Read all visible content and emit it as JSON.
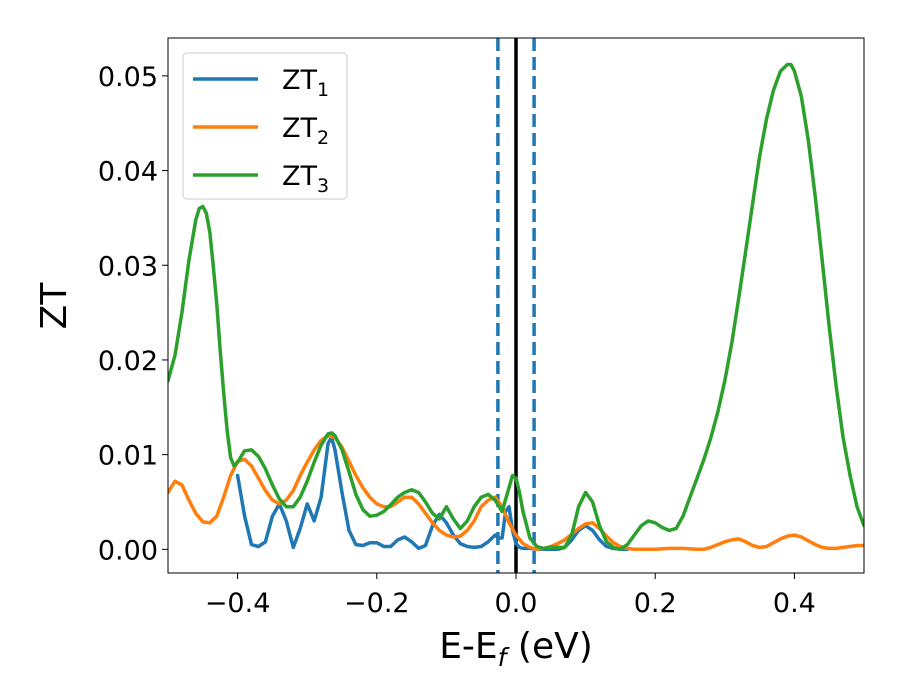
{
  "chart_data": {
    "type": "line",
    "xlabel": {
      "main": "E-E",
      "sub": "f",
      "suffix": " (eV)"
    },
    "ylabel": "ZT",
    "xlim": [
      -0.5,
      0.5
    ],
    "ylim": [
      -0.0025,
      0.054
    ],
    "xticks": [
      -0.4,
      -0.2,
      0.0,
      0.2,
      0.4
    ],
    "xtick_labels": [
      "−0.4",
      "−0.2",
      "0.0",
      "0.2",
      "0.4"
    ],
    "yticks": [
      0.0,
      0.01,
      0.02,
      0.03,
      0.04,
      0.05
    ],
    "ytick_labels": [
      "0.00",
      "0.01",
      "0.02",
      "0.03",
      "0.04",
      "0.05"
    ],
    "grid": false,
    "legend_position": "top-left",
    "vlines": [
      {
        "x": -0.026,
        "style": "dashed",
        "color": "#1f77b4"
      },
      {
        "x": 0.0,
        "style": "solid",
        "color": "#000000"
      },
      {
        "x": 0.026,
        "style": "dashed",
        "color": "#1f77b4"
      }
    ],
    "series": [
      {
        "name": "ZT",
        "sub": "1",
        "color": "#1f77b4",
        "x": [
          -0.4,
          -0.39,
          -0.38,
          -0.37,
          -0.36,
          -0.35,
          -0.34,
          -0.33,
          -0.32,
          -0.31,
          -0.3,
          -0.29,
          -0.28,
          -0.27,
          -0.265,
          -0.26,
          -0.25,
          -0.24,
          -0.23,
          -0.22,
          -0.21,
          -0.2,
          -0.19,
          -0.18,
          -0.17,
          -0.16,
          -0.15,
          -0.14,
          -0.13,
          -0.12,
          -0.11,
          -0.1,
          -0.09,
          -0.08,
          -0.07,
          -0.06,
          -0.05,
          -0.04,
          -0.03,
          -0.025,
          -0.02,
          -0.015,
          -0.01,
          -0.005,
          0.0,
          0.005,
          0.01,
          0.02,
          0.03,
          0.04,
          0.05,
          0.06,
          0.07,
          0.08,
          0.09,
          0.1,
          0.11,
          0.12,
          0.13,
          0.14,
          0.15,
          0.16
        ],
        "y": [
          0.0078,
          0.0035,
          0.0005,
          0.0003,
          0.0008,
          0.0035,
          0.0048,
          0.003,
          0.0002,
          0.0022,
          0.0048,
          0.003,
          0.0055,
          0.0112,
          0.0118,
          0.0105,
          0.006,
          0.002,
          0.0005,
          0.0004,
          0.0007,
          0.0007,
          0.0003,
          0.0003,
          0.001,
          0.0013,
          0.0008,
          0.0001,
          0.0004,
          0.0025,
          0.0037,
          0.0028,
          0.0015,
          0.0006,
          0.0003,
          0.0002,
          0.0003,
          0.0008,
          0.0015,
          0.0012,
          0.0012,
          0.004,
          0.0045,
          0.002,
          0.0006,
          0.0002,
          0.0001,
          0.0001,
          0.0,
          0.0,
          0.0,
          0.0,
          0.0002,
          0.001,
          0.002,
          0.0025,
          0.002,
          0.001,
          0.0003,
          0.0001,
          0.0,
          0.0
        ]
      },
      {
        "name": "ZT",
        "sub": "2",
        "color": "#ff7f0e",
        "x": [
          -0.5,
          -0.49,
          -0.48,
          -0.47,
          -0.46,
          -0.45,
          -0.44,
          -0.43,
          -0.42,
          -0.41,
          -0.4,
          -0.39,
          -0.38,
          -0.37,
          -0.36,
          -0.35,
          -0.34,
          -0.33,
          -0.32,
          -0.31,
          -0.3,
          -0.29,
          -0.28,
          -0.27,
          -0.26,
          -0.25,
          -0.24,
          -0.23,
          -0.22,
          -0.21,
          -0.2,
          -0.19,
          -0.18,
          -0.17,
          -0.16,
          -0.15,
          -0.14,
          -0.13,
          -0.12,
          -0.11,
          -0.1,
          -0.09,
          -0.08,
          -0.07,
          -0.06,
          -0.05,
          -0.04,
          -0.03,
          -0.02,
          -0.01,
          0.0,
          0.01,
          0.02,
          0.03,
          0.04,
          0.05,
          0.06,
          0.07,
          0.08,
          0.09,
          0.1,
          0.11,
          0.12,
          0.13,
          0.14,
          0.15,
          0.16,
          0.17,
          0.18,
          0.19,
          0.2,
          0.22,
          0.24,
          0.26,
          0.27,
          0.28,
          0.29,
          0.3,
          0.31,
          0.32,
          0.33,
          0.34,
          0.35,
          0.36,
          0.37,
          0.38,
          0.39,
          0.4,
          0.41,
          0.42,
          0.43,
          0.44,
          0.45,
          0.46,
          0.47,
          0.48,
          0.49,
          0.5
        ],
        "y": [
          0.006,
          0.0072,
          0.0068,
          0.0052,
          0.0038,
          0.0029,
          0.0028,
          0.0035,
          0.0055,
          0.0078,
          0.0093,
          0.0095,
          0.0088,
          0.0075,
          0.0062,
          0.0052,
          0.0048,
          0.0052,
          0.0062,
          0.0078,
          0.0092,
          0.0105,
          0.0115,
          0.012,
          0.0118,
          0.0108,
          0.0093,
          0.0078,
          0.0065,
          0.0055,
          0.0048,
          0.0045,
          0.0045,
          0.005,
          0.0055,
          0.0055,
          0.0048,
          0.0038,
          0.0028,
          0.002,
          0.0015,
          0.0013,
          0.0014,
          0.002,
          0.003,
          0.0045,
          0.0052,
          0.0055,
          0.0045,
          0.0028,
          0.0015,
          0.0006,
          0.0002,
          0.0,
          0.0001,
          0.0003,
          0.0006,
          0.001,
          0.0016,
          0.0022,
          0.0027,
          0.0028,
          0.0022,
          0.0014,
          0.0007,
          0.0003,
          0.0001,
          0.0,
          0.0,
          0.0,
          0.0,
          0.0001,
          0.0001,
          0.0,
          0.0,
          0.0002,
          0.0005,
          0.0008,
          0.001,
          0.0011,
          0.0008,
          0.0004,
          0.0002,
          0.0003,
          0.0007,
          0.0011,
          0.0014,
          0.0015,
          0.0013,
          0.0009,
          0.0005,
          0.0002,
          0.0001,
          0.0001,
          0.0002,
          0.0003,
          0.0004,
          0.0004
        ]
      },
      {
        "name": "ZT",
        "sub": "3",
        "color": "#2ca02c",
        "x": [
          -0.5,
          -0.49,
          -0.48,
          -0.47,
          -0.46,
          -0.455,
          -0.45,
          -0.445,
          -0.44,
          -0.435,
          -0.43,
          -0.425,
          -0.42,
          -0.415,
          -0.41,
          -0.405,
          -0.4,
          -0.395,
          -0.39,
          -0.38,
          -0.37,
          -0.36,
          -0.35,
          -0.34,
          -0.33,
          -0.32,
          -0.31,
          -0.3,
          -0.29,
          -0.28,
          -0.27,
          -0.265,
          -0.26,
          -0.25,
          -0.24,
          -0.23,
          -0.22,
          -0.21,
          -0.2,
          -0.19,
          -0.18,
          -0.17,
          -0.16,
          -0.15,
          -0.14,
          -0.13,
          -0.12,
          -0.11,
          -0.1,
          -0.09,
          -0.08,
          -0.07,
          -0.06,
          -0.05,
          -0.04,
          -0.03,
          -0.02,
          -0.01,
          -0.005,
          0.0,
          0.005,
          0.01,
          0.02,
          0.03,
          0.04,
          0.05,
          0.06,
          0.07,
          0.08,
          0.09,
          0.1,
          0.11,
          0.12,
          0.13,
          0.14,
          0.15,
          0.16,
          0.17,
          0.18,
          0.19,
          0.2,
          0.21,
          0.22,
          0.23,
          0.24,
          0.25,
          0.26,
          0.27,
          0.28,
          0.29,
          0.3,
          0.31,
          0.32,
          0.33,
          0.34,
          0.35,
          0.36,
          0.37,
          0.38,
          0.39,
          0.395,
          0.4,
          0.41,
          0.42,
          0.43,
          0.44,
          0.45,
          0.46,
          0.47,
          0.48,
          0.49,
          0.5
        ],
        "y": [
          0.0178,
          0.0205,
          0.025,
          0.0305,
          0.0348,
          0.036,
          0.0362,
          0.0355,
          0.0335,
          0.03,
          0.026,
          0.021,
          0.0165,
          0.0125,
          0.0097,
          0.0088,
          0.0092,
          0.0098,
          0.0104,
          0.0105,
          0.0098,
          0.0085,
          0.0068,
          0.0053,
          0.0045,
          0.0045,
          0.0055,
          0.0072,
          0.0092,
          0.011,
          0.0122,
          0.0123,
          0.012,
          0.0105,
          0.0082,
          0.0058,
          0.0042,
          0.0035,
          0.0036,
          0.004,
          0.0047,
          0.0055,
          0.006,
          0.0063,
          0.006,
          0.005,
          0.0038,
          0.0032,
          0.0045,
          0.0032,
          0.0022,
          0.003,
          0.0045,
          0.0055,
          0.0058,
          0.0052,
          0.004,
          0.0065,
          0.0078,
          0.0075,
          0.006,
          0.004,
          0.0012,
          0.0003,
          0.0001,
          0.0002,
          0.0002,
          0.0002,
          0.0015,
          0.0045,
          0.006,
          0.005,
          0.0025,
          0.0008,
          0.0002,
          0.0,
          0.0005,
          0.0015,
          0.0025,
          0.003,
          0.0028,
          0.0023,
          0.002,
          0.0022,
          0.0035,
          0.0055,
          0.0075,
          0.0095,
          0.0118,
          0.0145,
          0.0178,
          0.0218,
          0.0265,
          0.0315,
          0.0365,
          0.0415,
          0.0455,
          0.0485,
          0.0505,
          0.0512,
          0.0512,
          0.0505,
          0.0478,
          0.0432,
          0.0372,
          0.0305,
          0.0235,
          0.0172,
          0.0118,
          0.0078,
          0.0045,
          0.0025
        ]
      }
    ]
  }
}
